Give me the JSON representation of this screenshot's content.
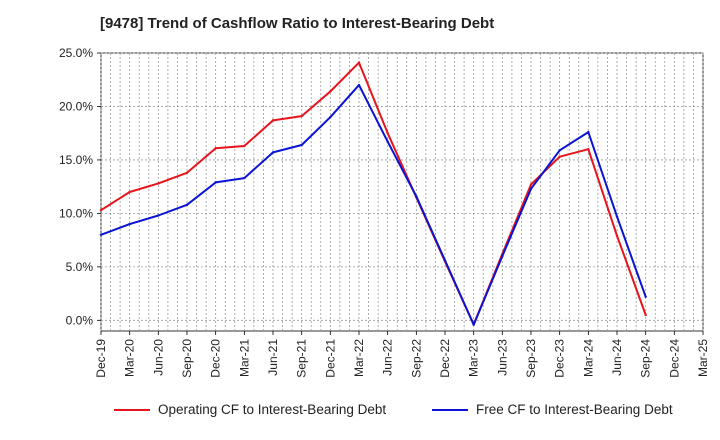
{
  "chart_data": {
    "type": "line",
    "title": "[9478]  Trend of Cashflow Ratio to Interest-Bearing Debt",
    "x": [
      "Dec-19",
      "Mar-20",
      "Jun-20",
      "Sep-20",
      "Dec-20",
      "Mar-21",
      "Jun-21",
      "Sep-21",
      "Dec-21",
      "Mar-22",
      "Jun-22",
      "Sep-22",
      "Dec-22",
      "Mar-23",
      "Jun-23",
      "Sep-23",
      "Dec-23",
      "Mar-24",
      "Jun-24",
      "Sep-24",
      "Dec-24",
      "Mar-25"
    ],
    "y_ticks": [
      "0.0%",
      "5.0%",
      "10.0%",
      "15.0%",
      "20.0%",
      "25.0%"
    ],
    "ylim": [
      -1.0,
      25.0
    ],
    "grid": true,
    "legend_position": "bottom",
    "series": [
      {
        "name": "Operating CF to Interest-Bearing Debt",
        "color": "#e8141c",
        "values": [
          10.3,
          12.0,
          12.8,
          13.8,
          16.1,
          16.3,
          18.7,
          19.1,
          21.4,
          24.1,
          17.5,
          11.5,
          5.5,
          -0.4,
          6.2,
          12.7,
          15.3,
          16.0,
          7.9,
          0.5,
          null,
          null
        ]
      },
      {
        "name": "Free CF to Interest-Bearing Debt",
        "color": "#0a14d2",
        "values": [
          8.0,
          9.0,
          9.8,
          10.8,
          12.9,
          13.3,
          15.7,
          16.4,
          19.0,
          22.0,
          16.7,
          11.6,
          5.6,
          -0.4,
          6.0,
          12.3,
          15.9,
          17.6,
          9.7,
          2.2,
          null,
          null
        ]
      }
    ]
  }
}
